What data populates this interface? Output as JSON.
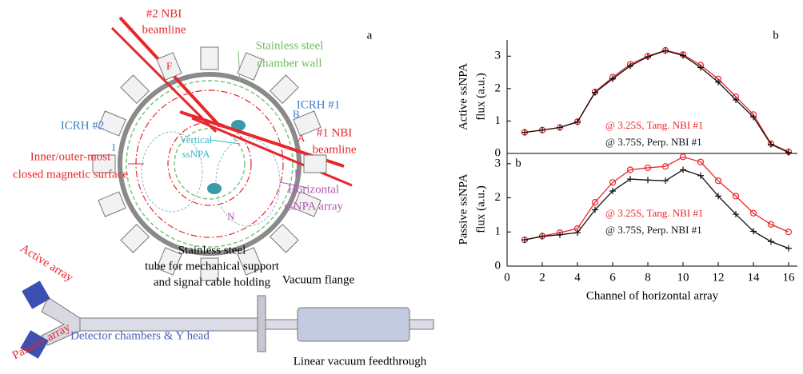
{
  "diagram": {
    "panel_label": "a",
    "nbi2": [
      "#2 NBI",
      "beamline"
    ],
    "wall": [
      "Stainless steel",
      "chamber wall"
    ],
    "icrh1": "ICRH #1",
    "nbi1": [
      "#1 NBI",
      "beamline"
    ],
    "icrh2": "ICRH #2",
    "vertical": [
      "Vertical",
      "ssNPA"
    ],
    "surface": [
      "Inner/outer-most",
      "closed magnetic surface"
    ],
    "horizontal": [
      "Horizontal",
      "ssNPA array"
    ],
    "ports": [
      "F",
      "B",
      "A",
      "I",
      "N",
      "P"
    ],
    "tube": [
      "Stainless steel",
      "tube for mechanical support",
      "and signal cable holding"
    ],
    "flange": "Vacuum flange",
    "active": "Active array",
    "passive": "Passive array",
    "chambers": "Detector chambers & Y head",
    "feedthrough": "Linear vacuum feedthrough"
  },
  "chart_data": [
    {
      "type": "line",
      "panel_label": "b",
      "ylabel": [
        "Active ssNPA",
        "flux (a.u.)"
      ],
      "xlim": [
        0,
        16.5
      ],
      "ylim": [
        0,
        3.5
      ],
      "yticks": [
        0,
        1,
        2,
        3
      ],
      "x": [
        1,
        2,
        3,
        4,
        5,
        6,
        7,
        8,
        9,
        10,
        11,
        12,
        13,
        14,
        15,
        16
      ],
      "series": [
        {
          "name": "@ 3.25S, Tang. NBI #1",
          "color": "#e8262b",
          "marker": "circle",
          "values": [
            0.65,
            0.72,
            0.8,
            0.98,
            1.9,
            2.35,
            2.75,
            3.0,
            3.18,
            3.05,
            2.72,
            2.3,
            1.75,
            1.2,
            0.3,
            0.05
          ]
        },
        {
          "name": "@ 3.75S, Perp. NBI #1",
          "color": "#111111",
          "marker": "plus",
          "values": [
            0.65,
            0.72,
            0.8,
            0.97,
            1.88,
            2.3,
            2.7,
            2.98,
            3.17,
            3.02,
            2.65,
            2.2,
            1.65,
            1.12,
            0.28,
            0.03
          ]
        }
      ]
    },
    {
      "type": "line",
      "panel_label": "b",
      "ylabel": [
        "Passive ssNPA",
        "flux (a.u.)"
      ],
      "xlabel": "Channel of horizontal array",
      "xlim": [
        0,
        16.5
      ],
      "ylim": [
        0,
        3.3
      ],
      "yticks": [
        0,
        1,
        2,
        3
      ],
      "xticks": [
        0,
        2,
        4,
        6,
        8,
        10,
        12,
        14,
        16
      ],
      "x": [
        1,
        2,
        3,
        4,
        5,
        6,
        7,
        8,
        9,
        10,
        11,
        12,
        13,
        14,
        15,
        16
      ],
      "series": [
        {
          "name": "@ 3.25S, Tang. NBI #1",
          "color": "#e8262b",
          "marker": "circle",
          "values": [
            0.77,
            0.88,
            0.98,
            1.1,
            1.87,
            2.45,
            2.82,
            2.88,
            2.92,
            3.2,
            3.05,
            2.5,
            2.05,
            1.55,
            1.22,
            1.0
          ]
        },
        {
          "name": "@ 3.75S, Perp. NBI #1",
          "color": "#111111",
          "marker": "plus",
          "values": [
            0.77,
            0.87,
            0.92,
            0.98,
            1.65,
            2.2,
            2.55,
            2.52,
            2.5,
            2.82,
            2.65,
            2.05,
            1.52,
            1.02,
            0.72,
            0.52
          ]
        }
      ]
    }
  ]
}
